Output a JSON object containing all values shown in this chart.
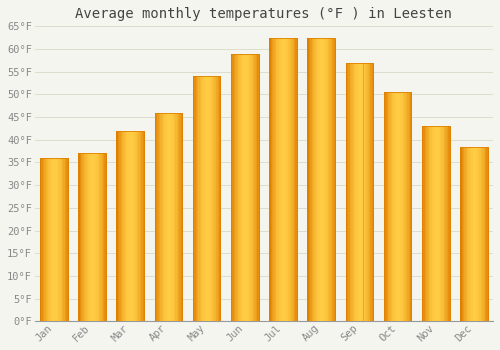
{
  "title": "Average monthly temperatures (°F ) in Leesten",
  "months": [
    "Jan",
    "Feb",
    "Mar",
    "Apr",
    "May",
    "Jun",
    "Jul",
    "Aug",
    "Sep",
    "Oct",
    "Nov",
    "Dec"
  ],
  "values": [
    36,
    37,
    42,
    46,
    54,
    59,
    62.5,
    62.5,
    57,
    50.5,
    43,
    38.5
  ],
  "bar_color_face": "#FFA500",
  "bar_color_edge": "#E08000",
  "background_color": "#F5F5F0",
  "grid_color": "#DDDDCC",
  "ylim": [
    0,
    65
  ],
  "yticks": [
    0,
    5,
    10,
    15,
    20,
    25,
    30,
    35,
    40,
    45,
    50,
    55,
    60,
    65
  ],
  "ytick_labels": [
    "0°F",
    "5°F",
    "10°F",
    "15°F",
    "20°F",
    "25°F",
    "30°F",
    "35°F",
    "40°F",
    "45°F",
    "50°F",
    "55°F",
    "60°F",
    "65°F"
  ],
  "title_fontsize": 10,
  "tick_fontsize": 7.5,
  "tick_color": "#888888",
  "font_family": "monospace",
  "title_color": "#444444"
}
